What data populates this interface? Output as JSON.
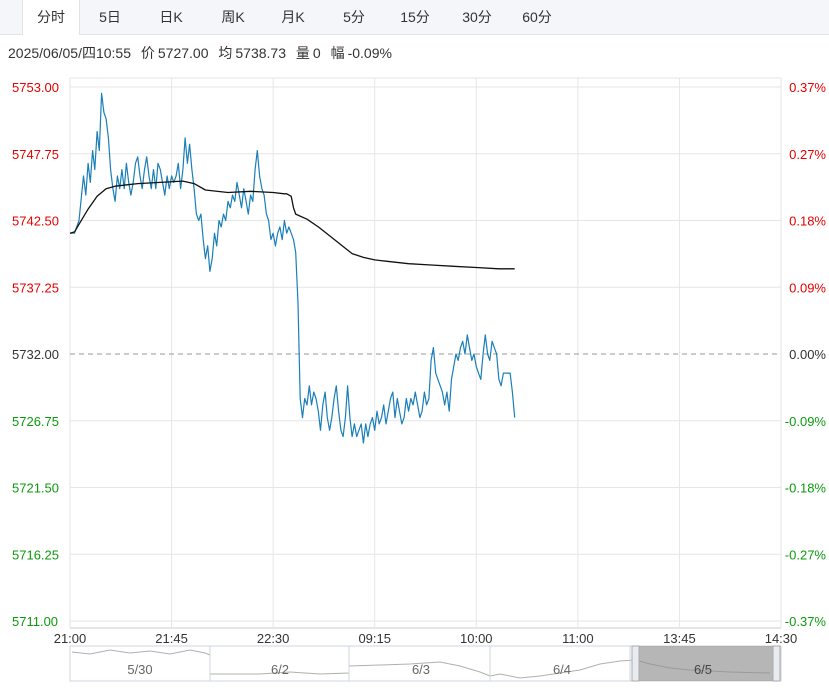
{
  "tabs": [
    {
      "label": "分时",
      "active": true
    },
    {
      "label": "5日",
      "active": false
    },
    {
      "label": "日K",
      "active": false
    },
    {
      "label": "周K",
      "active": false
    },
    {
      "label": "月K",
      "active": false
    },
    {
      "label": "5分",
      "active": false
    },
    {
      "label": "15分",
      "active": false
    },
    {
      "label": "30分",
      "active": false
    },
    {
      "label": "60分",
      "active": false
    }
  ],
  "info": {
    "datetime": "2025/06/05/四10:55",
    "price_label": "价",
    "price": "5727.00",
    "avg_label": "均",
    "avg": "5738.73",
    "vol_label": "量",
    "vol": "0",
    "change_label": "幅",
    "change": "-0.09%"
  },
  "colors": {
    "up": "#e60000",
    "down": "#0d9a0d",
    "price_line": "#1a7fb8",
    "avg_line": "#111111",
    "grid": "#e6e6e6",
    "base": "#999999"
  },
  "chart_data": {
    "type": "line",
    "ylim": [
      5711.0,
      5753.0
    ],
    "prev_close": 5732.0,
    "y_ticks_left": [
      "5753.00",
      "5747.75",
      "5742.50",
      "5737.25",
      "5732.00",
      "5726.75",
      "5721.50",
      "5716.25",
      "5711.00"
    ],
    "y_ticks_right": [
      "0.37%",
      "0.27%",
      "0.18%",
      "0.09%",
      "0.00%",
      "-0.09%",
      "-0.18%",
      "-0.27%",
      "-0.37%"
    ],
    "x_ticks": [
      "21:00",
      "21:45",
      "22:30",
      "09:15",
      "10:00",
      "11:00",
      "13:45",
      "14:30"
    ],
    "x_tick_index": [
      0,
      45,
      90,
      135,
      180,
      225,
      270,
      315
    ],
    "x_max_index": 315,
    "price": [
      [
        0,
        5741.5
      ],
      [
        2,
        5741.5
      ],
      [
        4,
        5742.5
      ],
      [
        6,
        5746
      ],
      [
        7,
        5744.5
      ],
      [
        8,
        5747
      ],
      [
        9,
        5745.5
      ],
      [
        10,
        5748
      ],
      [
        11,
        5746.5
      ],
      [
        12,
        5749.5
      ],
      [
        13,
        5748
      ],
      [
        14,
        5752.5
      ],
      [
        15,
        5751
      ],
      [
        16,
        5750.5
      ],
      [
        17,
        5749
      ],
      [
        18,
        5746.5
      ],
      [
        19,
        5745
      ],
      [
        20,
        5744
      ],
      [
        21,
        5746
      ],
      [
        22,
        5745
      ],
      [
        23,
        5746.5
      ],
      [
        24,
        5745
      ],
      [
        25,
        5747
      ],
      [
        26,
        5745.5
      ],
      [
        27,
        5744.5
      ],
      [
        28,
        5745.5
      ],
      [
        29,
        5747
      ],
      [
        30,
        5747.5
      ],
      [
        31,
        5746
      ],
      [
        32,
        5745
      ],
      [
        33,
        5746.5
      ],
      [
        34,
        5747.5
      ],
      [
        35,
        5746
      ],
      [
        36,
        5745
      ],
      [
        37,
        5746.5
      ],
      [
        38,
        5745
      ],
      [
        39,
        5747
      ],
      [
        40,
        5746.5
      ],
      [
        41,
        5745.5
      ],
      [
        42,
        5744.5
      ],
      [
        43,
        5746
      ],
      [
        44,
        5745
      ],
      [
        45,
        5746
      ],
      [
        46,
        5745.5
      ],
      [
        47,
        5746
      ],
      [
        48,
        5747
      ],
      [
        49,
        5745
      ],
      [
        50,
        5746.5
      ],
      [
        51,
        5749
      ],
      [
        52,
        5747
      ],
      [
        53,
        5748.5
      ],
      [
        54,
        5746.5
      ],
      [
        55,
        5745
      ],
      [
        56,
        5743
      ],
      [
        57,
        5742.5
      ],
      [
        58,
        5743
      ],
      [
        59,
        5741
      ],
      [
        60,
        5739.5
      ],
      [
        61,
        5740.5
      ],
      [
        62,
        5738.5
      ],
      [
        63,
        5739.5
      ],
      [
        64,
        5741.5
      ],
      [
        65,
        5740.5
      ],
      [
        66,
        5742.5
      ],
      [
        67,
        5742
      ],
      [
        68,
        5743
      ],
      [
        69,
        5742.5
      ],
      [
        70,
        5744
      ],
      [
        71,
        5743.5
      ],
      [
        72,
        5744.5
      ],
      [
        73,
        5744
      ],
      [
        74,
        5745.5
      ],
      [
        75,
        5744.5
      ],
      [
        76,
        5743.5
      ],
      [
        77,
        5745
      ],
      [
        78,
        5744
      ],
      [
        79,
        5743
      ],
      [
        80,
        5744.5
      ],
      [
        81,
        5744
      ],
      [
        82,
        5746.5
      ],
      [
        83,
        5748
      ],
      [
        84,
        5746
      ],
      [
        85,
        5745
      ],
      [
        86,
        5744.5
      ],
      [
        87,
        5743
      ],
      [
        88,
        5742.5
      ],
      [
        89,
        5741
      ],
      [
        90,
        5741.5
      ],
      [
        91,
        5740.5
      ],
      [
        92,
        5741.5
      ],
      [
        93,
        5742
      ],
      [
        94,
        5741
      ],
      [
        95,
        5742.5
      ],
      [
        96,
        5741.5
      ],
      [
        97,
        5742
      ],
      [
        98,
        5741.5
      ],
      [
        99,
        5741
      ],
      [
        100,
        5740
      ],
      [
        101,
        5736
      ],
      [
        102,
        5728.5
      ],
      [
        103,
        5727
      ],
      [
        104,
        5728.5
      ],
      [
        105,
        5728
      ],
      [
        106,
        5729.5
      ],
      [
        107,
        5728
      ],
      [
        108,
        5729
      ],
      [
        109,
        5728.5
      ],
      [
        110,
        5727.5
      ],
      [
        111,
        5726
      ],
      [
        112,
        5728
      ],
      [
        113,
        5729
      ],
      [
        114,
        5727
      ],
      [
        115,
        5726
      ],
      [
        116,
        5727
      ],
      [
        117,
        5728.5
      ],
      [
        118,
        5729.5
      ],
      [
        119,
        5727.5
      ],
      [
        120,
        5726
      ],
      [
        121,
        5725.5
      ],
      [
        122,
        5727
      ],
      [
        123,
        5729.5
      ],
      [
        124,
        5727
      ],
      [
        125,
        5725.5
      ],
      [
        126,
        5726.5
      ],
      [
        127,
        5725.5
      ],
      [
        128,
        5726
      ],
      [
        129,
        5726.5
      ],
      [
        130,
        5725
      ],
      [
        131,
        5726.5
      ],
      [
        132,
        5725.5
      ],
      [
        133,
        5726.5
      ],
      [
        134,
        5727
      ],
      [
        135,
        5726
      ],
      [
        136,
        5727.5
      ],
      [
        137,
        5726.5
      ],
      [
        138,
        5727
      ],
      [
        139,
        5728
      ],
      [
        140,
        5726.5
      ],
      [
        141,
        5727.5
      ],
      [
        142,
        5728.5
      ],
      [
        143,
        5729
      ],
      [
        144,
        5727
      ],
      [
        145,
        5728.5
      ],
      [
        146,
        5727.5
      ],
      [
        147,
        5726.5
      ],
      [
        148,
        5727
      ],
      [
        149,
        5728.5
      ],
      [
        150,
        5727.5
      ],
      [
        151,
        5728.5
      ],
      [
        152,
        5728
      ],
      [
        153,
        5729
      ],
      [
        154,
        5728
      ],
      [
        155,
        5727
      ],
      [
        156,
        5727.5
      ],
      [
        157,
        5729
      ],
      [
        158,
        5728
      ],
      [
        159,
        5728.5
      ],
      [
        160,
        5731.5
      ],
      [
        161,
        5732.5
      ],
      [
        162,
        5730.5
      ],
      [
        163,
        5730
      ],
      [
        164,
        5729.5
      ],
      [
        165,
        5729
      ],
      [
        166,
        5728
      ],
      [
        167,
        5729
      ],
      [
        168,
        5727.5
      ],
      [
        169,
        5730
      ],
      [
        170,
        5731
      ],
      [
        171,
        5732
      ],
      [
        172,
        5731.5
      ],
      [
        173,
        5732.5
      ],
      [
        174,
        5733
      ],
      [
        175,
        5732
      ],
      [
        176,
        5733.5
      ],
      [
        177,
        5732.5
      ],
      [
        178,
        5731.5
      ],
      [
        179,
        5732
      ],
      [
        180,
        5731
      ],
      [
        181,
        5730.5
      ],
      [
        182,
        5730
      ],
      [
        183,
        5732
      ],
      [
        184,
        5733.5
      ],
      [
        185,
        5732
      ],
      [
        186,
        5731.5
      ],
      [
        187,
        5733
      ],
      [
        188,
        5732.5
      ],
      [
        189,
        5732
      ],
      [
        190,
        5730
      ],
      [
        191,
        5729.5
      ],
      [
        192,
        5730.5
      ],
      [
        193,
        5730.5
      ],
      [
        194,
        5730.5
      ],
      [
        195,
        5730.5
      ],
      [
        196,
        5729
      ],
      [
        197,
        5727
      ]
    ],
    "avg": [
      [
        0,
        5741.5
      ],
      [
        2,
        5741.6
      ],
      [
        4,
        5742.2
      ],
      [
        8,
        5743.4
      ],
      [
        12,
        5744.4
      ],
      [
        16,
        5745.0
      ],
      [
        20,
        5745.2
      ],
      [
        30,
        5745.4
      ],
      [
        40,
        5745.5
      ],
      [
        50,
        5745.6
      ],
      [
        55,
        5745.4
      ],
      [
        60,
        5744.9
      ],
      [
        70,
        5744.7
      ],
      [
        80,
        5744.8
      ],
      [
        90,
        5744.7
      ],
      [
        95,
        5744.6
      ],
      [
        96,
        5744.6
      ],
      [
        98,
        5744.4
      ],
      [
        99,
        5743.5
      ],
      [
        100,
        5743.0
      ],
      [
        105,
        5742.6
      ],
      [
        110,
        5742.0
      ],
      [
        115,
        5741.3
      ],
      [
        120,
        5740.6
      ],
      [
        125,
        5739.9
      ],
      [
        130,
        5739.6
      ],
      [
        135,
        5739.4
      ],
      [
        140,
        5739.3
      ],
      [
        150,
        5739.1
      ],
      [
        160,
        5739.0
      ],
      [
        170,
        5738.9
      ],
      [
        180,
        5738.8
      ],
      [
        190,
        5738.7
      ],
      [
        197,
        5738.7
      ]
    ],
    "navigator_labels": [
      "5/30",
      "6/2",
      "6/3",
      "6/4",
      "6/5"
    ]
  }
}
